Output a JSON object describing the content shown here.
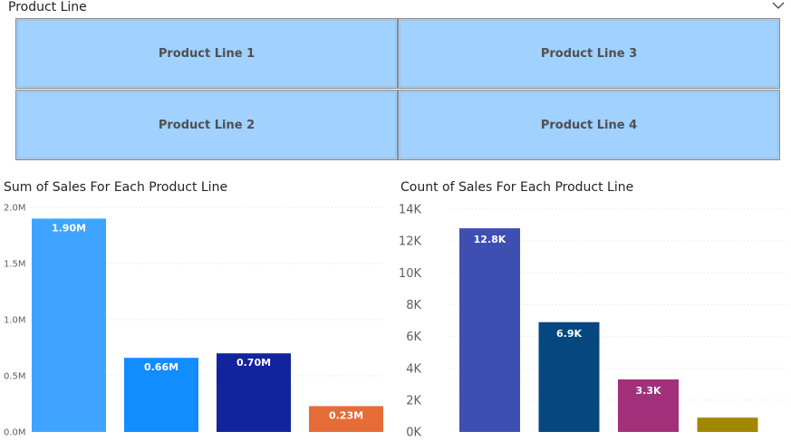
{
  "slicer": {
    "title": "Product Line",
    "tiles": [
      {
        "label": "Product Line 1"
      },
      {
        "label": "Product Line 2"
      },
      {
        "label": "Product Line 3"
      },
      {
        "label": "Product Line 4"
      }
    ]
  },
  "icons": {
    "dropdown": "chevron-down-icon"
  },
  "chart_data": [
    {
      "type": "bar",
      "title": "Sum of Sales For Each Product Line",
      "xlabel": "",
      "ylabel": "",
      "ylim": [
        0,
        2000000
      ],
      "yticks": [
        0,
        500000,
        1000000,
        1500000,
        2000000
      ],
      "yticklabels": [
        "0.0M",
        "0.5M",
        "1.0M",
        "1.5M",
        "2.0M"
      ],
      "grid": true,
      "values": [
        1900000,
        660000,
        700000,
        230000
      ],
      "data_labels": [
        "1.90M",
        "0.66M",
        "0.70M",
        "0.23M"
      ],
      "colors": [
        "#3ea4ff",
        "#118dff",
        "#12239e",
        "#e66c37"
      ]
    },
    {
      "type": "bar",
      "title": "Count of Sales For Each Product Line",
      "xlabel": "",
      "ylabel": "",
      "ylim": [
        0,
        14000
      ],
      "yticks": [
        0,
        2000,
        4000,
        6000,
        8000,
        10000,
        12000,
        14000
      ],
      "yticklabels": [
        "0K",
        "2K",
        "4K",
        "6K",
        "8K",
        "10K",
        "12K",
        "14K"
      ],
      "grid": true,
      "values": [
        12800,
        6900,
        3300,
        900
      ],
      "data_labels": [
        "12.8K",
        "6.9K",
        "3.3K",
        ""
      ],
      "colors": [
        "#3f4fb1",
        "#064780",
        "#a3307a",
        "#a08800"
      ]
    }
  ]
}
